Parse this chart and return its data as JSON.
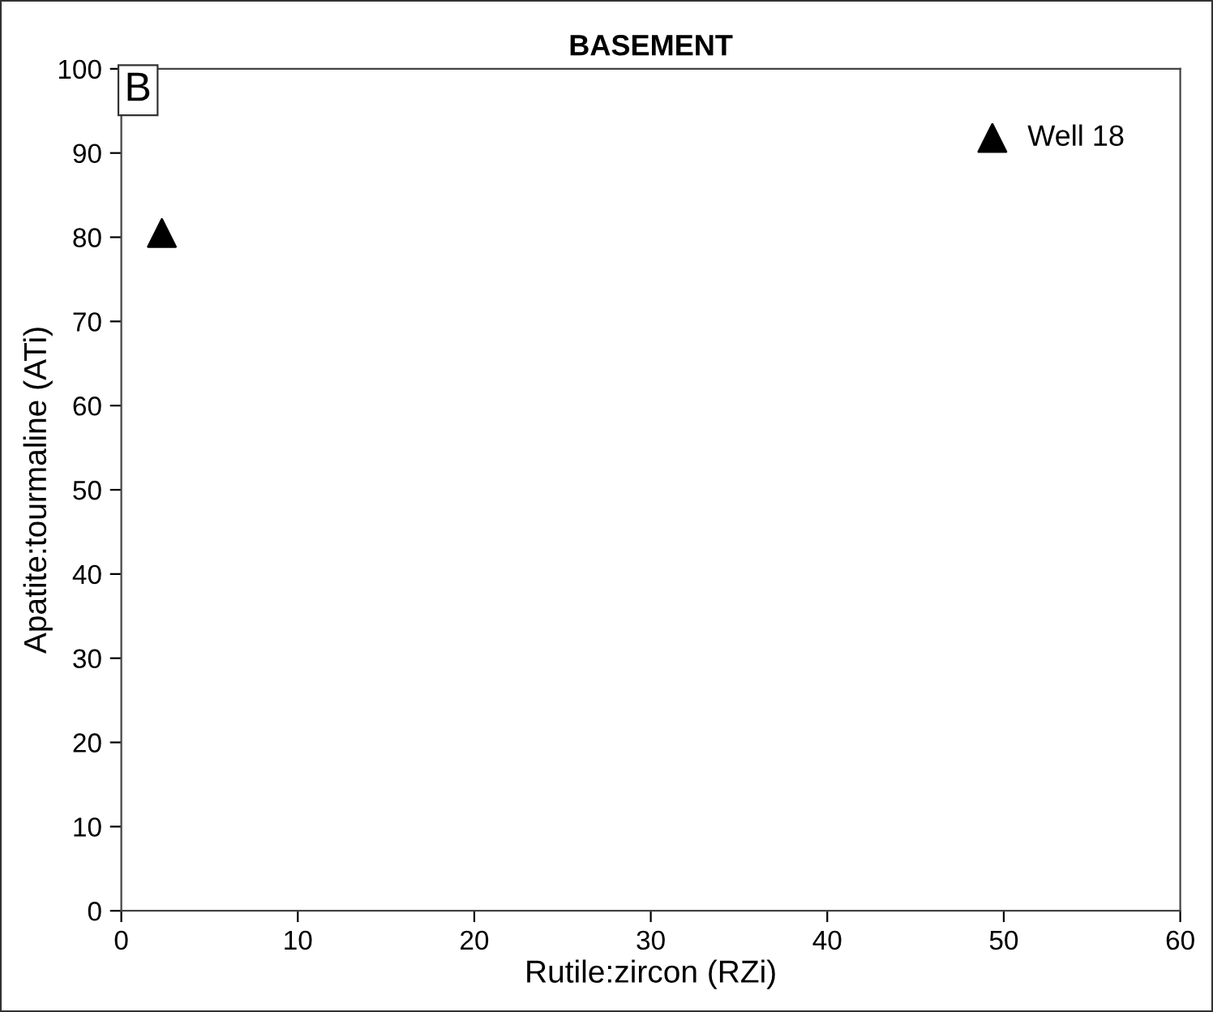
{
  "chart_data": {
    "type": "scatter",
    "title": "BASEMENT",
    "xlabel": "Rutile:zircon (RZi)",
    "ylabel": "Apatite:tourmaline (ATi)",
    "annotations": [
      "B"
    ],
    "series": [
      {
        "name": "Well 18",
        "color": "#000000",
        "x": [
          2.3
        ],
        "values": [
          80.5
        ]
      }
    ],
    "marker": "triangle",
    "legend": "top right",
    "grid": false,
    "xlim": [
      0,
      60
    ],
    "xticks": [
      0,
      10,
      20,
      30,
      40,
      50,
      60
    ],
    "ylim": [
      0,
      100
    ],
    "yticks": [
      0,
      10,
      20,
      30,
      40,
      50,
      60,
      70,
      80,
      90,
      100
    ]
  }
}
